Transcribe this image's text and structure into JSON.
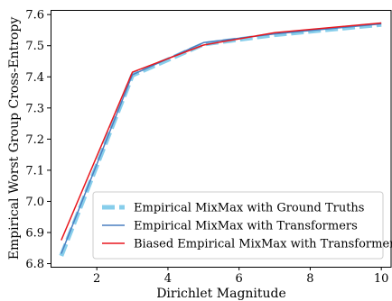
{
  "chart_data": {
    "type": "line",
    "xlabel": "Dirichlet Magnitude",
    "ylabel": "Empirical Worst Group Cross-Entropy",
    "xlim": [
      0.7,
      10.3
    ],
    "ylim": [
      6.79,
      7.615
    ],
    "xticks": [
      2,
      4,
      6,
      8,
      10
    ],
    "yticks": [
      6.8,
      6.9,
      7.0,
      7.1,
      7.2,
      7.3,
      7.4,
      7.5,
      7.6
    ],
    "xtick_labels": [
      "2",
      "4",
      "6",
      "8",
      "10"
    ],
    "ytick_labels": [
      "6.8",
      "6.9",
      "7.0",
      "7.1",
      "7.2",
      "7.3",
      "7.4",
      "7.5",
      "7.6"
    ],
    "grid": false,
    "legend_position": "bottom-right",
    "x": [
      1,
      3,
      5,
      7,
      10
    ],
    "series": [
      {
        "name": "Empirical MixMax with Ground Truths",
        "values": [
          6.825,
          7.405,
          7.505,
          7.535,
          7.568
        ],
        "color": "#87ceeb",
        "style": "dashed-thick"
      },
      {
        "name": "Empirical MixMax with Transformers",
        "values": [
          6.832,
          7.407,
          7.51,
          7.538,
          7.57
        ],
        "color": "#4a7fc1",
        "style": "solid"
      },
      {
        "name": "Biased Empirical MixMax with Transformers",
        "values": [
          6.875,
          7.415,
          7.502,
          7.542,
          7.573
        ],
        "color": "#e8171e",
        "style": "solid"
      }
    ]
  }
}
